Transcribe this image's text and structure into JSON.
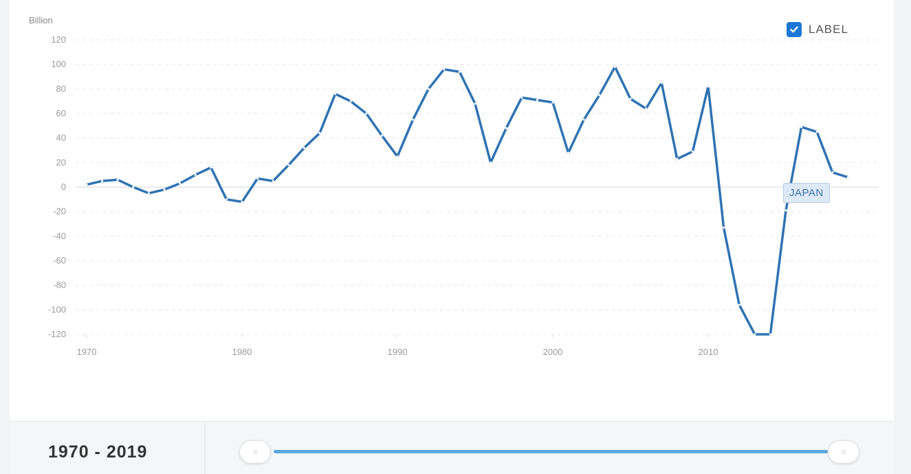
{
  "chart_data": {
    "type": "line",
    "ylabel": "Billion",
    "xlabel": "",
    "ylim": [
      -120,
      120
    ],
    "xlim": [
      1970,
      2019
    ],
    "yticks": [
      120,
      100,
      80,
      60,
      40,
      20,
      0,
      -20,
      -40,
      -60,
      -80,
      -100,
      -120
    ],
    "xticks": [
      1970,
      1980,
      1990,
      2000,
      2010
    ],
    "grid": true,
    "series": [
      {
        "name": "JAPAN",
        "color": "#2f73b2",
        "x": [
          1970,
          1971,
          1972,
          1973,
          1974,
          1975,
          1976,
          1977,
          1978,
          1979,
          1980,
          1981,
          1982,
          1983,
          1984,
          1985,
          1986,
          1987,
          1988,
          1989,
          1990,
          1991,
          1992,
          1993,
          1994,
          1995,
          1996,
          1997,
          1998,
          1999,
          2000,
          2001,
          2002,
          2003,
          2004,
          2005,
          2006,
          2007,
          2008,
          2009,
          2010,
          2011,
          2012,
          2013,
          2014,
          2015,
          2016,
          2017,
          2018,
          2019
        ],
        "values": [
          2,
          5,
          6,
          0,
          -5,
          -2,
          3,
          10,
          16,
          -10,
          -12,
          7,
          5,
          18,
          32,
          44,
          76,
          70,
          60,
          42,
          25,
          55,
          80,
          96,
          94,
          68,
          20,
          48,
          73,
          71,
          69,
          28,
          55,
          75,
          98,
          72,
          64,
          85,
          23,
          29,
          82,
          -33,
          -96,
          -120,
          -120,
          -19,
          49,
          45,
          12,
          8
        ]
      }
    ]
  },
  "ui": {
    "range_label": "1970 - 2019",
    "label_toggle": "LABEL",
    "label_checked": true,
    "slider_start_handle": "|||",
    "slider_end_handle": "|||",
    "accent_color": "#1d77d6",
    "slider_color": "#5aa9dd"
  }
}
